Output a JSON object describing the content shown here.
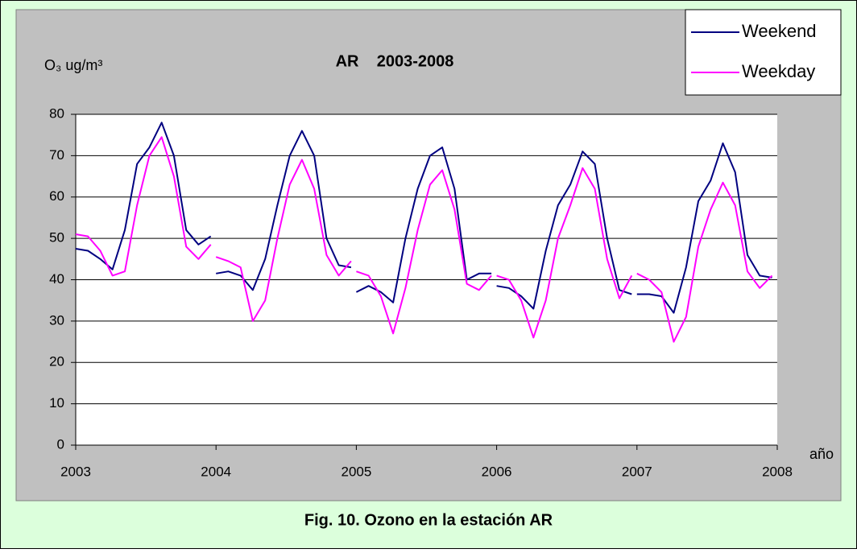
{
  "chart_data": {
    "type": "line",
    "title": "AR    2003-2008",
    "y_label": "O₃ ug/m³",
    "x_label": "año",
    "caption": "Fig. 10. Ozono en la estación AR",
    "x": [
      2003,
      2003.0875,
      2003.175,
      2003.2625,
      2003.35,
      2003.4375,
      2003.525,
      2003.6125,
      2003.7,
      2003.7875,
      2003.875,
      2003.9625,
      2003.98,
      2004,
      2004.0875,
      2004.175,
      2004.2625,
      2004.35,
      2004.4375,
      2004.525,
      2004.6125,
      2004.7,
      2004.7875,
      2004.875,
      2004.9625,
      2004.98,
      2005,
      2005.0875,
      2005.175,
      2005.2625,
      2005.35,
      2005.4375,
      2005.525,
      2005.6125,
      2005.7,
      2005.7875,
      2005.875,
      2005.9625,
      2005.98,
      2006,
      2006.0875,
      2006.175,
      2006.2625,
      2006.35,
      2006.4375,
      2006.525,
      2006.6125,
      2006.7,
      2006.7875,
      2006.875,
      2006.9625,
      2006.98,
      2007,
      2007.0875,
      2007.175,
      2007.2625,
      2007.35,
      2007.4375,
      2007.525,
      2007.6125,
      2007.7,
      2007.7875,
      2007.875,
      2007.9625
    ],
    "series": [
      {
        "name": "Weekend",
        "color": "#000080",
        "values": [
          47.5,
          47,
          45,
          42.5,
          52,
          68,
          72,
          78,
          70,
          52,
          48.5,
          50.5,
          null,
          41.5,
          42,
          41,
          37.5,
          45,
          58,
          70,
          76,
          70,
          50,
          43.5,
          43,
          null,
          37,
          38.5,
          37,
          34.5,
          50,
          62,
          70,
          72,
          62,
          40,
          41.5,
          41.5,
          null,
          38.5,
          38,
          36,
          33,
          47,
          58,
          63,
          71,
          68,
          50,
          37.5,
          36.5,
          null,
          36.5,
          36.5,
          36,
          32,
          43,
          59,
          64,
          73,
          66,
          46,
          41,
          40.5
        ]
      },
      {
        "name": "Weekday",
        "color": "#ff00ff",
        "values": [
          51,
          50.5,
          47,
          41,
          42,
          58,
          70,
          74.5,
          65,
          48,
          45,
          48.5,
          null,
          45.5,
          44.5,
          43,
          30,
          35,
          50,
          63,
          69,
          62,
          46,
          41,
          44.5,
          null,
          42,
          41,
          36,
          27,
          38,
          52,
          63,
          66.5,
          57,
          39,
          37.5,
          41,
          null,
          41,
          40,
          35,
          26,
          35,
          50,
          58,
          67,
          62,
          45,
          35.5,
          41,
          null,
          41.5,
          40,
          37,
          25,
          31,
          48,
          57,
          63.5,
          58,
          42,
          38,
          41
        ]
      }
    ],
    "xlim": [
      2003,
      2008
    ],
    "xticks": [
      2003,
      2004,
      2005,
      2006,
      2007,
      2008
    ],
    "ylim": [
      0,
      80
    ],
    "yticks": [
      0,
      10,
      20,
      30,
      40,
      50,
      60,
      70,
      80
    ],
    "grid": true,
    "legend": "top-right"
  }
}
